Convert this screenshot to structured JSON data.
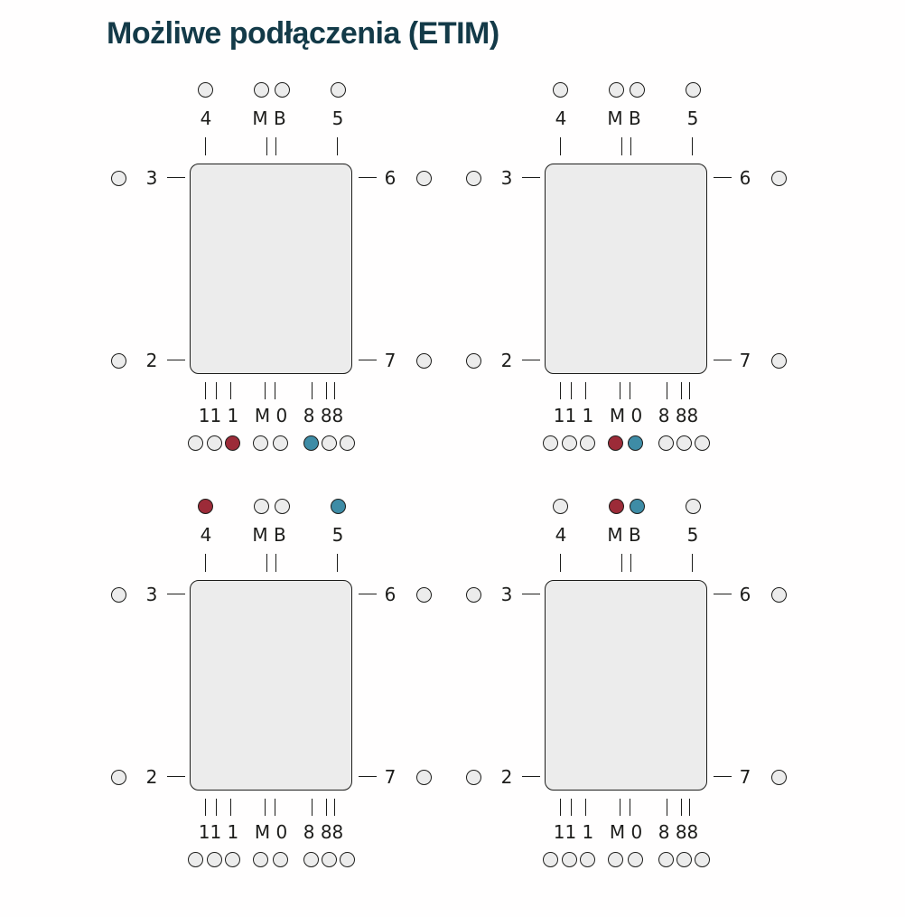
{
  "title": "Możliwe podłączenia (ETIM)",
  "colors": {
    "title": "#133a48",
    "ink": "#1d1d1b",
    "light": "#ececec",
    "red": "#9c2b38",
    "teal": "#3e8ca6"
  },
  "pins": {
    "top_labels": [
      "4",
      "M B",
      "5"
    ],
    "left_labels": [
      "3",
      "2"
    ],
    "right_labels": [
      "6",
      "7"
    ],
    "bottom_labels": [
      "11 1",
      "M 0",
      "8 88"
    ]
  },
  "diagrams": [
    {
      "name": "variant-1",
      "top_circles": [
        "light",
        "light",
        "light",
        "light"
      ],
      "bottom_circles": [
        "light",
        "light",
        "red",
        "light",
        "light",
        "teal",
        "light",
        "light"
      ]
    },
    {
      "name": "variant-2",
      "top_circles": [
        "light",
        "light",
        "light",
        "light"
      ],
      "bottom_circles": [
        "light",
        "light",
        "light",
        "red",
        "teal",
        "light",
        "light",
        "light"
      ]
    },
    {
      "name": "variant-3",
      "top_circles": [
        "red",
        "light",
        "light",
        "teal"
      ],
      "bottom_circles": [
        "light",
        "light",
        "light",
        "light",
        "light",
        "light",
        "light",
        "light"
      ]
    },
    {
      "name": "variant-4",
      "top_circles": [
        "light",
        "red",
        "teal",
        "light"
      ],
      "bottom_circles": [
        "light",
        "light",
        "light",
        "light",
        "light",
        "light",
        "light",
        "light"
      ]
    }
  ]
}
